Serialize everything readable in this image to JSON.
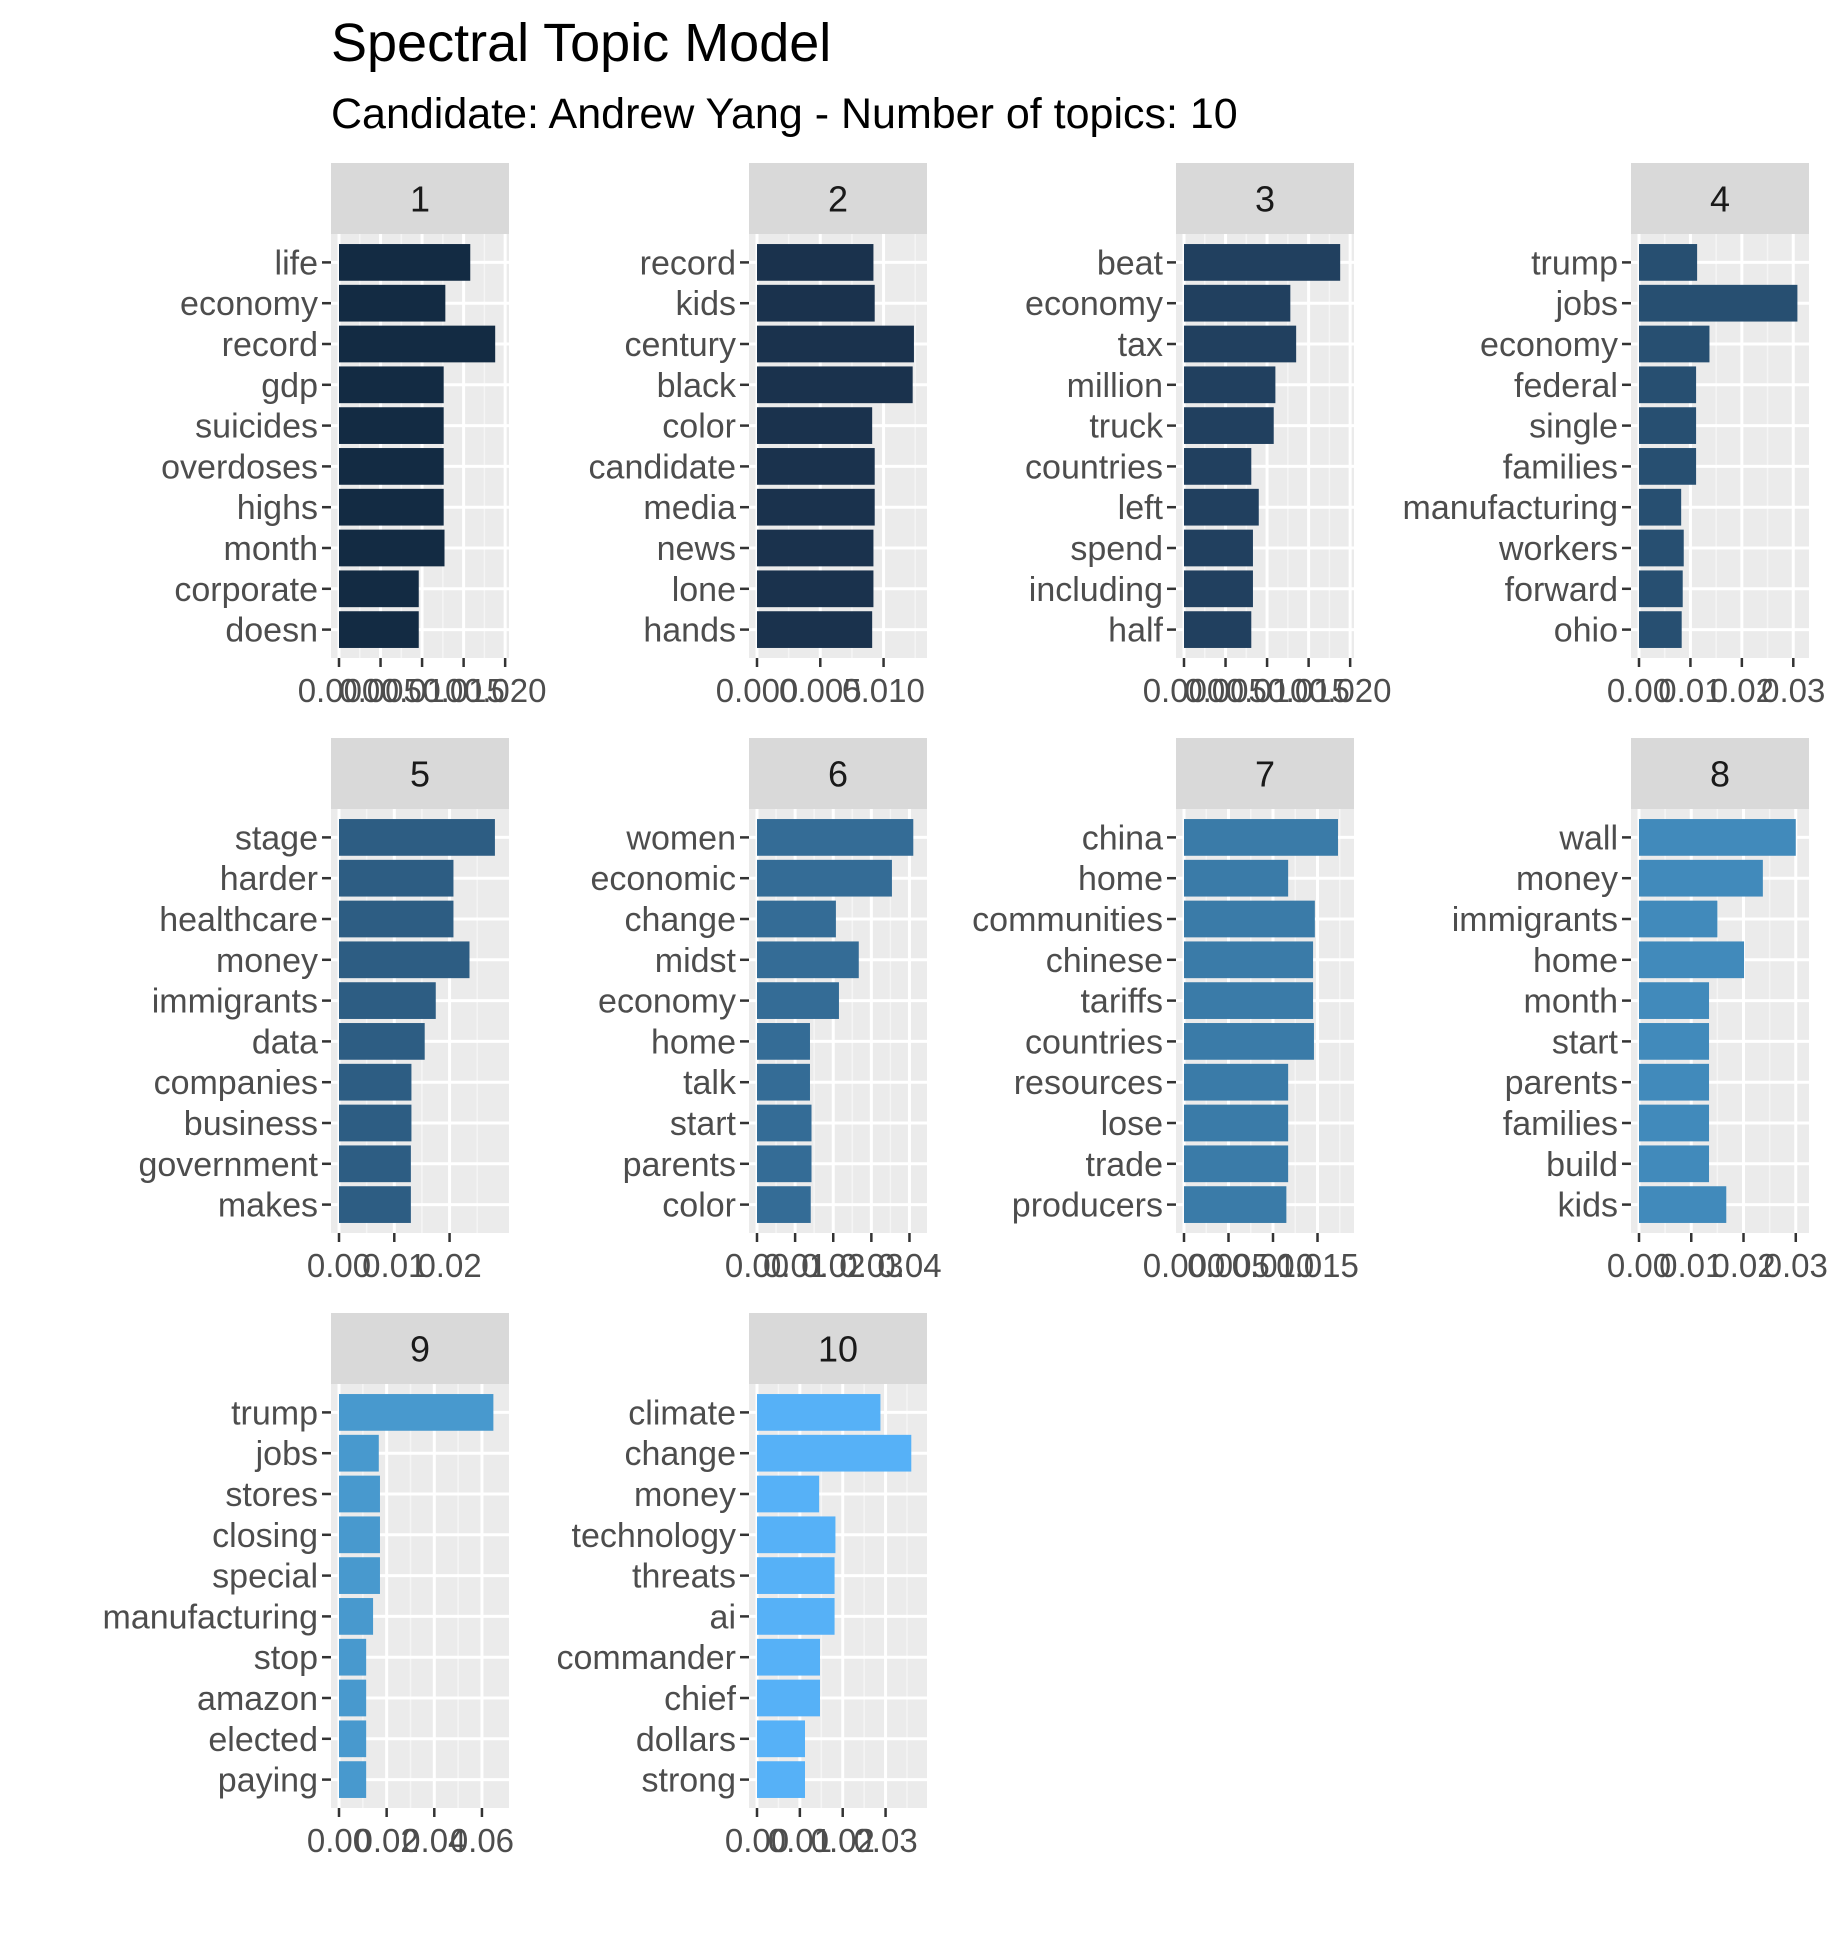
{
  "chart_data": {
    "type": "bar",
    "title": "Spectral Topic Model",
    "subtitle": "Candidate: Andrew Yang - Number of topics: 10",
    "orientation": "horizontal",
    "facets": [
      {
        "label": "1",
        "color": "#132B43",
        "categories": [
          "life",
          "economy",
          "record",
          "gdp",
          "suicides",
          "overdoses",
          "highs",
          "month",
          "corporate",
          "doesn"
        ],
        "values": [
          0.0158,
          0.0128,
          0.0188,
          0.0126,
          0.0126,
          0.0126,
          0.0126,
          0.0127,
          0.0096,
          0.0096
        ],
        "xlim": [
          0,
          0.0195
        ],
        "ticks": [
          0.0,
          0.005,
          0.01,
          0.015,
          0.02
        ],
        "tick_labels": [
          "0.000",
          "0.005",
          "0.010",
          "0.015",
          "0.020"
        ]
      },
      {
        "label": "2",
        "color": "#1A324D",
        "categories": [
          "record",
          "kids",
          "century",
          "black",
          "color",
          "candidate",
          "media",
          "news",
          "lone",
          "hands"
        ],
        "values": [
          0.0092,
          0.0093,
          0.0124,
          0.0123,
          0.0091,
          0.0093,
          0.0093,
          0.0092,
          0.0092,
          0.0091
        ],
        "xlim": [
          0,
          0.0128
        ],
        "ticks": [
          0.0,
          0.005,
          0.01
        ],
        "tick_labels": [
          "0.000",
          "0.005",
          "0.010"
        ]
      },
      {
        "label": "3",
        "color": "#21405F",
        "categories": [
          "beat",
          "economy",
          "tax",
          "million",
          "truck",
          "countries",
          "left",
          "spend",
          "including",
          "half"
        ],
        "values": [
          0.0188,
          0.0128,
          0.0135,
          0.011,
          0.0108,
          0.0081,
          0.009,
          0.0083,
          0.0083,
          0.0081
        ],
        "xlim": [
          0,
          0.0195
        ],
        "ticks": [
          0.0,
          0.005,
          0.01,
          0.015,
          0.02
        ],
        "tick_labels": [
          "0.000",
          "0.005",
          "0.010",
          "0.015",
          "0.020"
        ]
      },
      {
        "label": "4",
        "color": "#274F71",
        "categories": [
          "trump",
          "jobs",
          "economy",
          "federal",
          "single",
          "families",
          "manufacturing",
          "workers",
          "forward",
          "ohio"
        ],
        "values": [
          0.0113,
          0.0308,
          0.0137,
          0.0111,
          0.0111,
          0.0111,
          0.0082,
          0.0087,
          0.0085,
          0.0083
        ],
        "xlim": [
          0,
          0.0315
        ],
        "ticks": [
          0.0,
          0.01,
          0.02,
          0.03
        ],
        "tick_labels": [
          "0.00",
          "0.01",
          "0.02",
          "0.03"
        ]
      },
      {
        "label": "5",
        "color": "#2D5D83",
        "categories": [
          "stage",
          "harder",
          "healthcare",
          "money",
          "immigrants",
          "data",
          "companies",
          "business",
          "government",
          "makes"
        ],
        "values": [
          0.0282,
          0.0207,
          0.0207,
          0.0236,
          0.0175,
          0.0155,
          0.0131,
          0.0131,
          0.013,
          0.013
        ],
        "xlim": [
          0,
          0.0293
        ],
        "ticks": [
          0.0,
          0.01,
          0.02
        ],
        "tick_labels": [
          "0.00",
          "0.01",
          "0.02"
        ]
      },
      {
        "label": "6",
        "color": "#346C96",
        "categories": [
          "women",
          "economic",
          "change",
          "midst",
          "economy",
          "home",
          "talk",
          "start",
          "parents",
          "color"
        ],
        "values": [
          0.041,
          0.0354,
          0.0207,
          0.0267,
          0.0215,
          0.0139,
          0.0139,
          0.0143,
          0.0143,
          0.0141
        ],
        "xlim": [
          0,
          0.0425
        ],
        "ticks": [
          0.0,
          0.01,
          0.02,
          0.03,
          0.04
        ],
        "tick_labels": [
          "0.00",
          "0.01",
          "0.02",
          "0.03",
          "0.04"
        ]
      },
      {
        "label": "7",
        "color": "#3A7BA8",
        "categories": [
          "china",
          "home",
          "communities",
          "chinese",
          "tariffs",
          "countries",
          "resources",
          "lose",
          "trade",
          "producers"
        ],
        "values": [
          0.0173,
          0.0117,
          0.0147,
          0.0145,
          0.0145,
          0.0146,
          0.0117,
          0.0117,
          0.0117,
          0.0115
        ],
        "xlim": [
          0,
          0.0182
        ],
        "ticks": [
          0.0,
          0.005,
          0.01,
          0.015
        ],
        "tick_labels": [
          "0.000",
          "0.005",
          "0.010",
          "0.015"
        ]
      },
      {
        "label": "8",
        "color": "#418ABB",
        "categories": [
          "wall",
          "money",
          "immigrants",
          "home",
          "month",
          "start",
          "parents",
          "families",
          "build",
          "kids"
        ],
        "values": [
          0.03,
          0.0237,
          0.015,
          0.0201,
          0.0134,
          0.0134,
          0.0134,
          0.0134,
          0.0134,
          0.0167
        ],
        "xlim": [
          0,
          0.031
        ],
        "ticks": [
          0.0,
          0.01,
          0.02,
          0.03
        ],
        "tick_labels": [
          "0.00",
          "0.01",
          "0.02",
          "0.03"
        ]
      },
      {
        "label": "9",
        "color": "#4899CE",
        "categories": [
          "trump",
          "jobs",
          "stores",
          "closing",
          "special",
          "manufacturing",
          "stop",
          "amazon",
          "elected",
          "paying"
        ],
        "values": [
          0.0648,
          0.0167,
          0.0172,
          0.0172,
          0.0172,
          0.0143,
          0.0114,
          0.0114,
          0.0114,
          0.0114
        ],
        "xlim": [
          0,
          0.068
        ],
        "ticks": [
          0.0,
          0.02,
          0.04,
          0.06
        ],
        "tick_labels": [
          "0.00",
          "0.02",
          "0.04",
          "0.06"
        ]
      },
      {
        "label": "10",
        "color": "#56B1F7",
        "categories": [
          "climate",
          "change",
          "money",
          "technology",
          "threats",
          "ai",
          "commander",
          "chief",
          "dollars",
          "strong"
        ],
        "values": [
          0.0288,
          0.036,
          0.0145,
          0.0183,
          0.0181,
          0.0181,
          0.0147,
          0.0147,
          0.0112,
          0.0112
        ],
        "xlim": [
          0,
          0.0378
        ],
        "ticks": [
          0.0,
          0.01,
          0.02,
          0.03
        ],
        "tick_labels": [
          "0.00",
          "0.01",
          "0.02",
          "0.03"
        ]
      }
    ]
  }
}
